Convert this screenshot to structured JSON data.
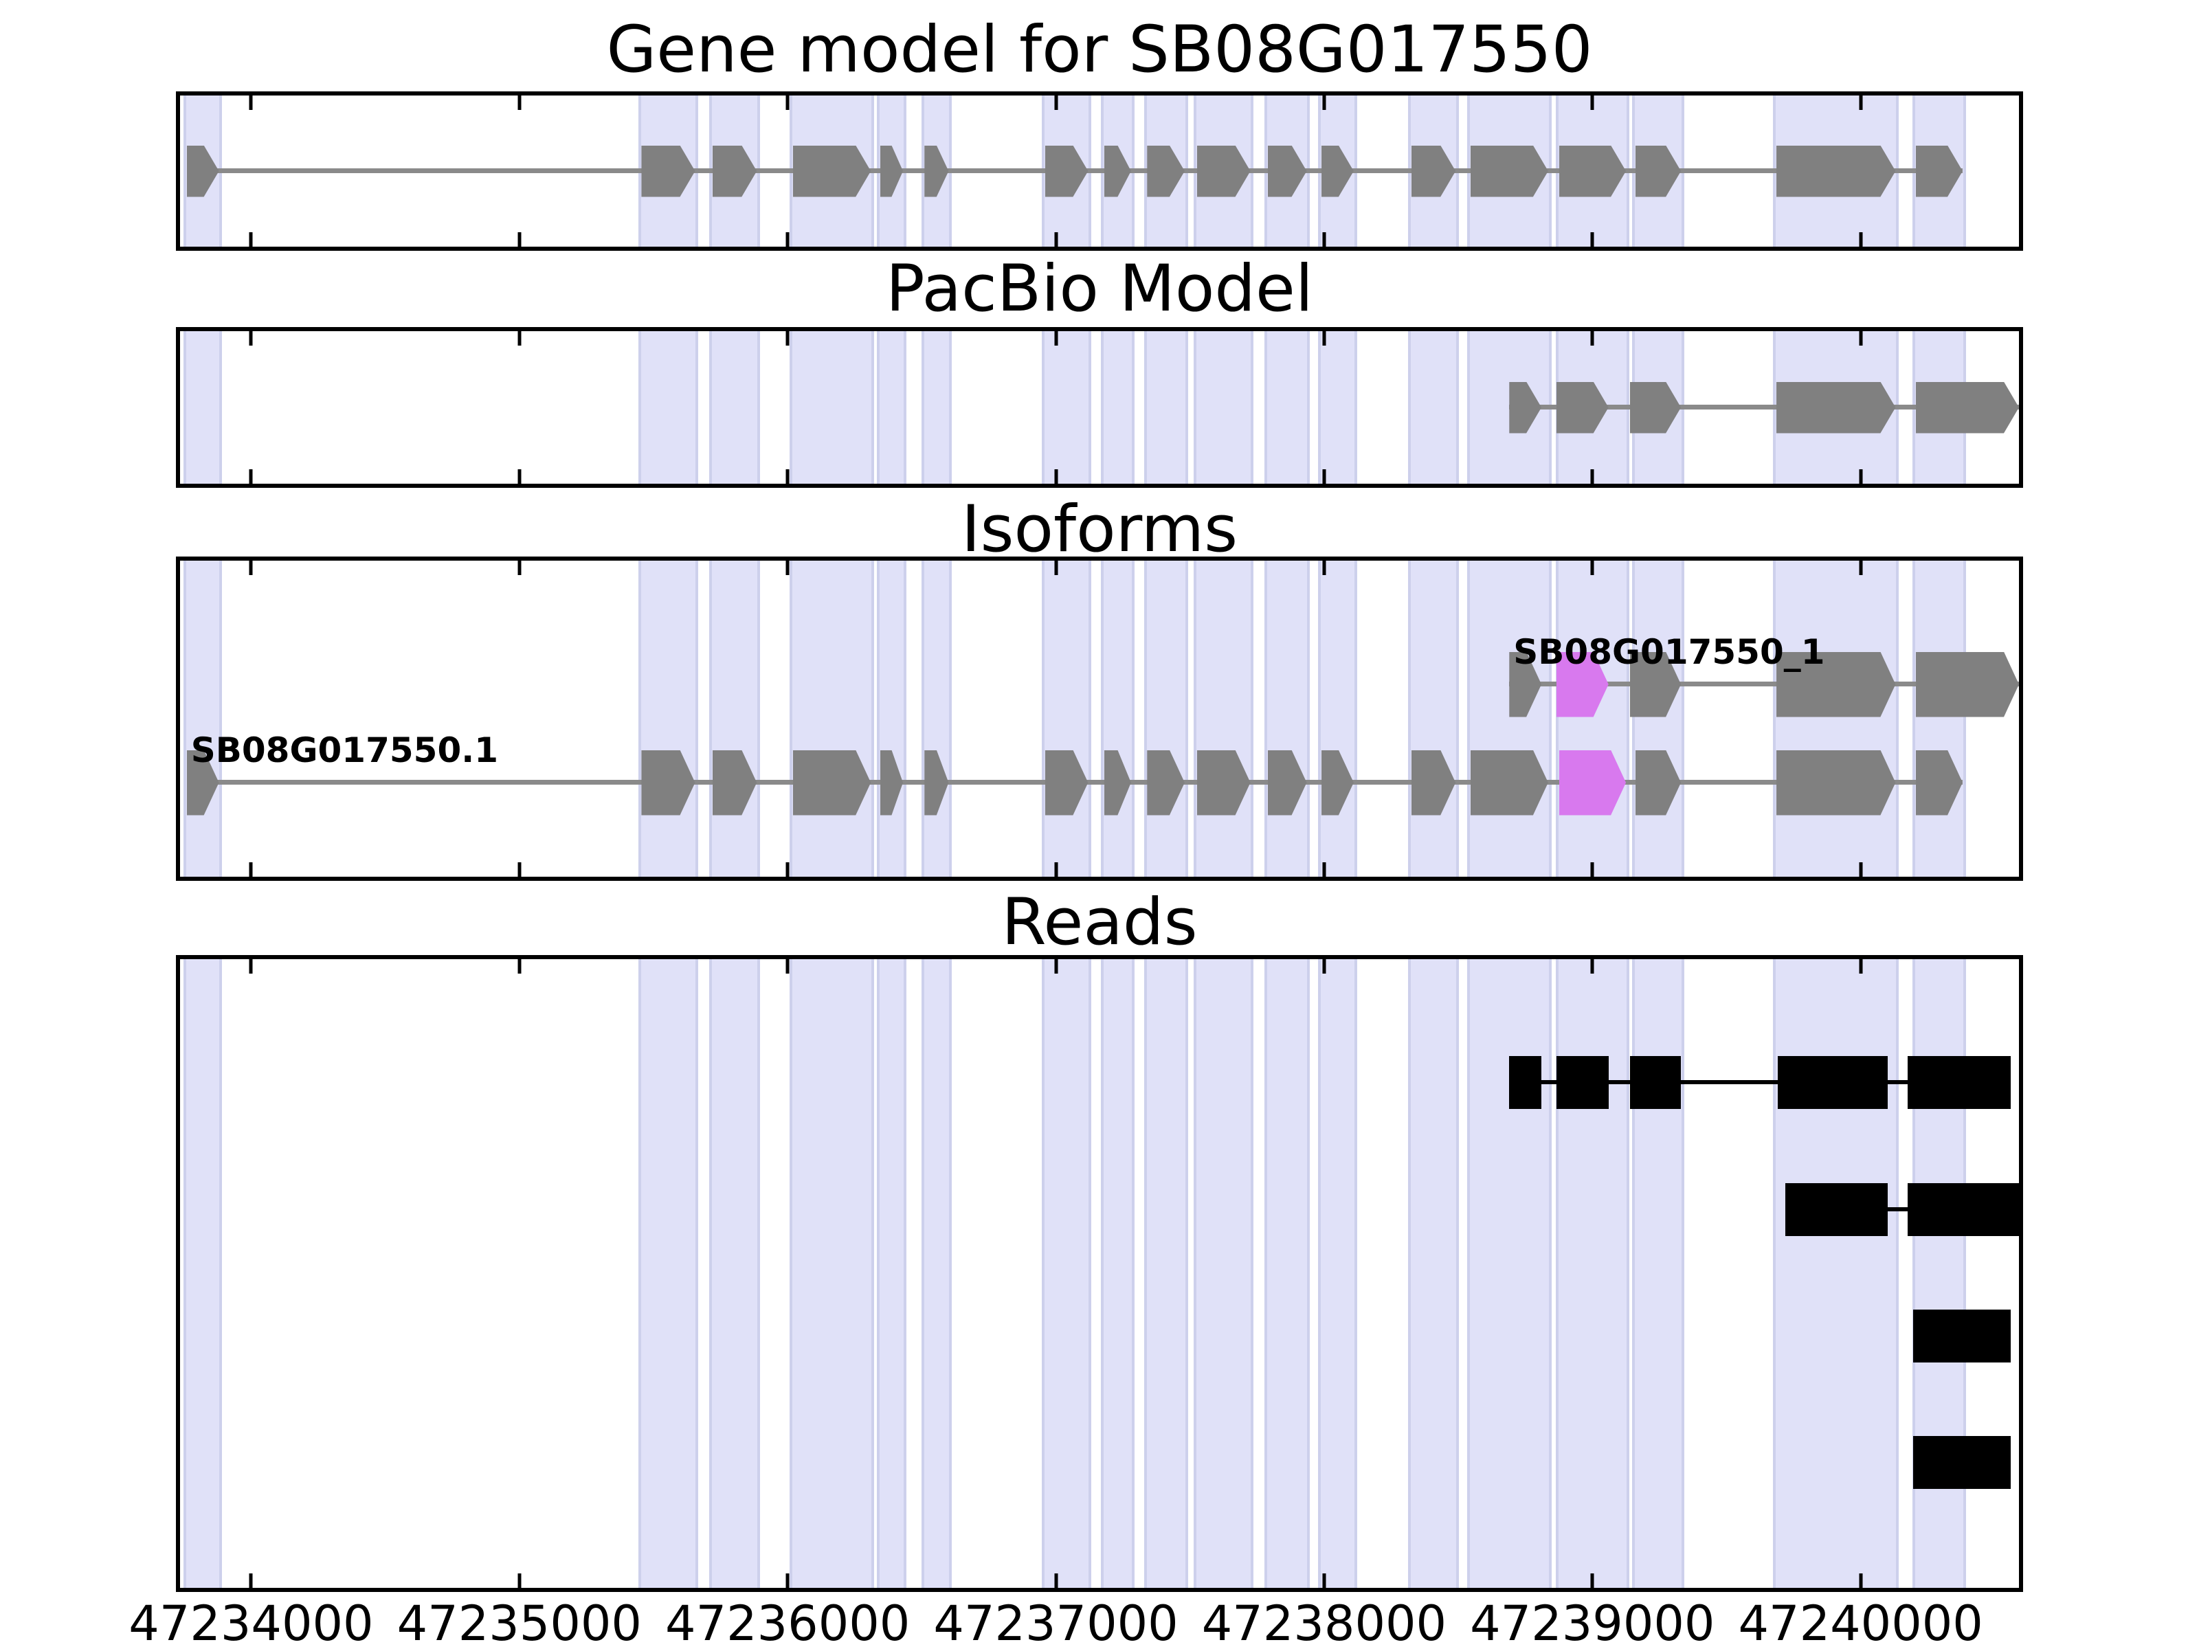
{
  "figure": {
    "background": "#ffffff"
  },
  "colors": {
    "panel_border": "#000000",
    "highlight_band": "#e0e1f8",
    "highlight_band_edge": "#cdd0ec",
    "exon": "#808080",
    "intron_line": "#8a8a8a",
    "highlight_exon": "#d879ee",
    "read": "#000000",
    "tick": "#000000",
    "text": "#000000"
  },
  "axis": {
    "xmin": 47233735,
    "xmax": 47240590,
    "tick_values": [
      47234000,
      47235000,
      47236000,
      47237000,
      47238000,
      47239000,
      47240000
    ],
    "tick_labels": [
      "47234000",
      "47235000",
      "47236000",
      "47237000",
      "47238000",
      "47239000",
      "47240000"
    ]
  },
  "chart_data": {
    "type": "genome-tracks",
    "xlim": [
      47233735,
      47240590
    ],
    "xticks": [
      47234000,
      47235000,
      47236000,
      47237000,
      47238000,
      47239000,
      47240000
    ],
    "highlight_bands": [
      [
        47233748,
        47233892
      ],
      [
        47235443,
        47235667
      ],
      [
        47235708,
        47235897
      ],
      [
        47236008,
        47236322
      ],
      [
        47236333,
        47236442
      ],
      [
        47236498,
        47236612
      ],
      [
        47236948,
        47237132
      ],
      [
        47237168,
        47237292
      ],
      [
        47237328,
        47237492
      ],
      [
        47237513,
        47237737
      ],
      [
        47237778,
        47237947
      ],
      [
        47237978,
        47238122
      ],
      [
        47238313,
        47238502
      ],
      [
        47238533,
        47238847
      ],
      [
        47238863,
        47239137
      ],
      [
        47239148,
        47239342
      ],
      [
        47239673,
        47240142
      ],
      [
        47240193,
        47240392
      ]
    ],
    "panels": [
      {
        "id": "gene-model",
        "title": "Gene model for SB08G017550",
        "type": "transcripts",
        "items": [
          {
            "label": "",
            "exons": [
              [
                47233760,
                47233880,
                0
              ],
              [
                47235455,
                47235655,
                0
              ],
              [
                47235720,
                47235885,
                0
              ],
              [
                47236020,
                47236310,
                0
              ],
              [
                47236345,
                47236430,
                0
              ],
              [
                47236510,
                47236600,
                0
              ],
              [
                47236960,
                47237120,
                0
              ],
              [
                47237180,
                47237280,
                0
              ],
              [
                47237340,
                47237480,
                0
              ],
              [
                47237525,
                47237725,
                0
              ],
              [
                47237790,
                47237935,
                0
              ],
              [
                47237990,
                47238110,
                0
              ],
              [
                47238325,
                47238490,
                0
              ],
              [
                47238545,
                47238835,
                0
              ],
              [
                47238875,
                47239125,
                0
              ],
              [
                47239160,
                47239330,
                0
              ],
              [
                47239685,
                47240130,
                0
              ],
              [
                47240205,
                47240380,
                0
              ]
            ]
          }
        ]
      },
      {
        "id": "pacbio-model",
        "title": "PacBio Model",
        "type": "transcripts",
        "items": [
          {
            "label": "",
            "exons": [
              [
                47238690,
                47238810,
                0
              ],
              [
                47238865,
                47239060,
                0
              ],
              [
                47239140,
                47239330,
                0
              ],
              [
                47239685,
                47240130,
                0
              ],
              [
                47240205,
                47240590,
                0
              ]
            ]
          }
        ]
      },
      {
        "id": "isoforms",
        "title": "Isoforms",
        "type": "transcripts",
        "items": [
          {
            "label": "SB08G017550_1",
            "exons": [
              [
                47238690,
                47238810,
                0
              ],
              [
                47238865,
                47239060,
                1
              ],
              [
                47239140,
                47239330,
                0
              ],
              [
                47239685,
                47240130,
                0
              ],
              [
                47240205,
                47240590,
                0
              ]
            ]
          },
          {
            "label": "SB08G017550.1",
            "exons": [
              [
                47233760,
                47233880,
                0
              ],
              [
                47235455,
                47235655,
                0
              ],
              [
                47235720,
                47235885,
                0
              ],
              [
                47236020,
                47236310,
                0
              ],
              [
                47236345,
                47236430,
                0
              ],
              [
                47236510,
                47236600,
                0
              ],
              [
                47236960,
                47237120,
                0
              ],
              [
                47237180,
                47237280,
                0
              ],
              [
                47237340,
                47237480,
                0
              ],
              [
                47237525,
                47237725,
                0
              ],
              [
                47237790,
                47237935,
                0
              ],
              [
                47237990,
                47238110,
                0
              ],
              [
                47238325,
                47238490,
                0
              ],
              [
                47238545,
                47238835,
                0
              ],
              [
                47238875,
                47239125,
                1
              ],
              [
                47239160,
                47239330,
                0
              ],
              [
                47239685,
                47240130,
                0
              ],
              [
                47240205,
                47240380,
                0
              ]
            ]
          }
        ]
      },
      {
        "id": "reads",
        "title": "Reads",
        "type": "reads",
        "items": [
          {
            "blocks": [
              [
                47238690,
                47238810
              ],
              [
                47238865,
                47239060
              ],
              [
                47239140,
                47239330
              ],
              [
                47239690,
                47240100
              ],
              [
                47240175,
                47240560
              ]
            ]
          },
          {
            "blocks": [
              [
                47239720,
                47240100
              ],
              [
                47240175,
                47240590
              ]
            ]
          },
          {
            "blocks": [
              [
                47240195,
                47240560
              ]
            ]
          },
          {
            "blocks": [
              [
                47240195,
                47240560
              ]
            ]
          }
        ]
      }
    ]
  }
}
